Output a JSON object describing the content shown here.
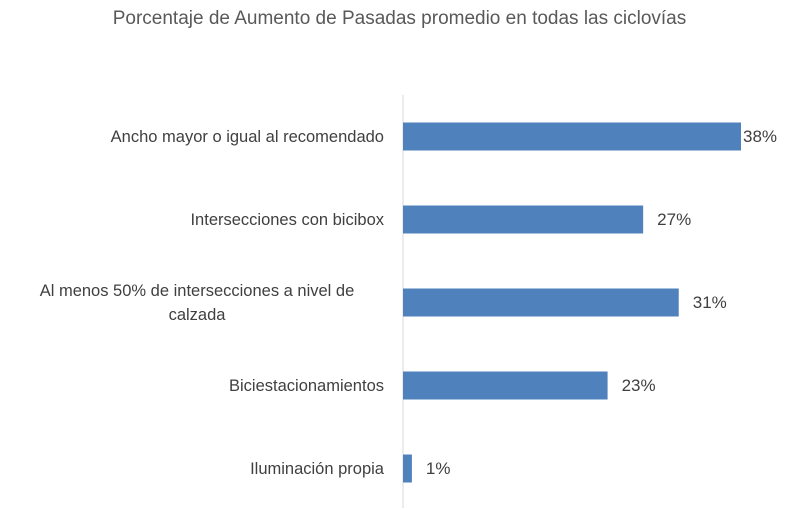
{
  "chart_data": {
    "type": "bar",
    "orientation": "horizontal",
    "title": "Porcentaje de Aumento de Pasadas promedio en todas las ciclovías",
    "categories": [
      "Ancho mayor o igual al recomendado",
      "Intersecciones con bicibox",
      "Al menos 50% de intersecciones a nivel de calzada",
      "Biciestacionamientos",
      "Iluminación propia"
    ],
    "values": [
      38,
      27,
      31,
      23,
      1
    ],
    "value_labels": [
      "38%",
      "27%",
      "31%",
      "23%",
      "1%"
    ],
    "color": "#4f81bd"
  }
}
